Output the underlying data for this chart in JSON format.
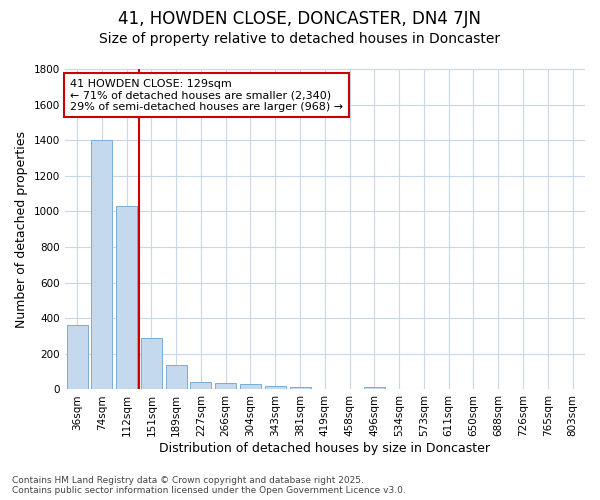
{
  "title": "41, HOWDEN CLOSE, DONCASTER, DN4 7JN",
  "subtitle": "Size of property relative to detached houses in Doncaster",
  "xlabel": "Distribution of detached houses by size in Doncaster",
  "ylabel": "Number of detached properties",
  "categories": [
    "36sqm",
    "74sqm",
    "112sqm",
    "151sqm",
    "189sqm",
    "227sqm",
    "266sqm",
    "304sqm",
    "343sqm",
    "381sqm",
    "419sqm",
    "458sqm",
    "496sqm",
    "534sqm",
    "573sqm",
    "611sqm",
    "650sqm",
    "688sqm",
    "726sqm",
    "765sqm",
    "803sqm"
  ],
  "values": [
    360,
    1400,
    1030,
    290,
    135,
    40,
    35,
    30,
    20,
    15,
    0,
    0,
    15,
    0,
    0,
    0,
    0,
    0,
    0,
    0,
    0
  ],
  "bar_color": "#c5d9ee",
  "bar_edge_color": "#7aaed6",
  "background_color": "#ffffff",
  "grid_color": "#c8d8ea",
  "vline_x": 2.5,
  "vline_color": "#cc0000",
  "annotation_line1": "41 HOWDEN CLOSE: 129sqm",
  "annotation_line2": "← 71% of detached houses are smaller (2,340)",
  "annotation_line3": "29% of semi-detached houses are larger (968) →",
  "annotation_box_color": "#cc0000",
  "ylim": [
    0,
    1800
  ],
  "yticks": [
    0,
    200,
    400,
    600,
    800,
    1000,
    1200,
    1400,
    1600,
    1800
  ],
  "footer_line1": "Contains HM Land Registry data © Crown copyright and database right 2025.",
  "footer_line2": "Contains public sector information licensed under the Open Government Licence v3.0.",
  "title_fontsize": 12,
  "subtitle_fontsize": 10,
  "axis_label_fontsize": 9,
  "tick_fontsize": 7.5,
  "annotation_fontsize": 8,
  "footer_fontsize": 6.5
}
